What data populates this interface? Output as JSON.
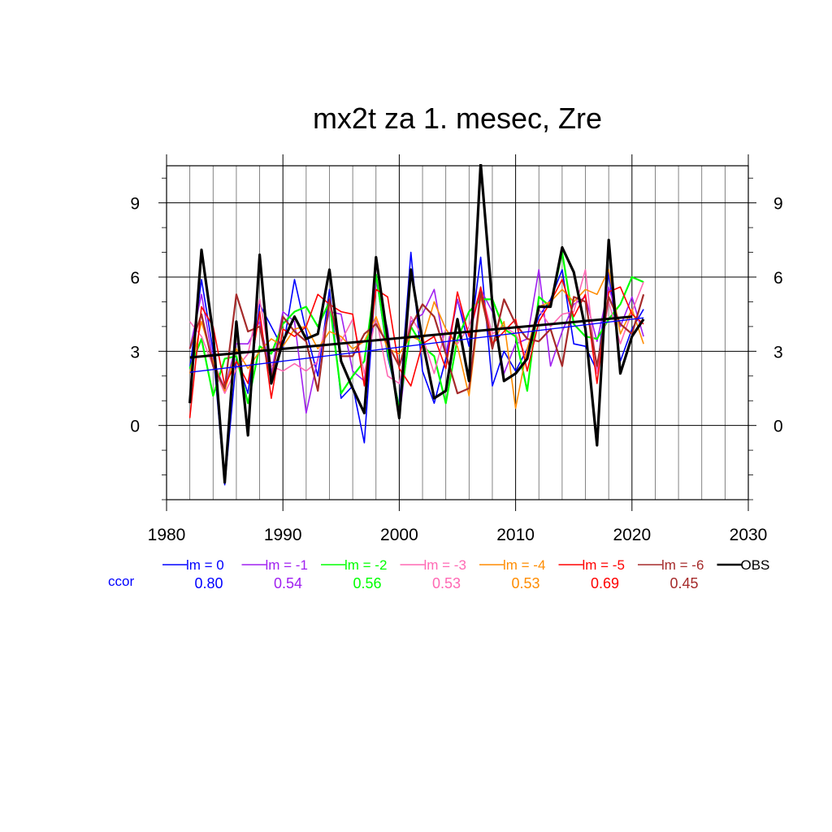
{
  "chart_data": {
    "type": "line",
    "title": "mx2t za 1. mesec, Zre",
    "xlabel": "",
    "ylabel": "",
    "xlim": [
      1980,
      2030
    ],
    "ylim": [
      -3,
      10.5
    ],
    "grid": true,
    "x_ticks": [
      1980,
      1990,
      2000,
      2010,
      2020,
      2030
    ],
    "y_ticks": [
      0,
      3,
      6,
      9
    ],
    "x": [
      1982,
      1983,
      1984,
      1985,
      1986,
      1987,
      1988,
      1989,
      1990,
      1991,
      1992,
      1993,
      1994,
      1995,
      1996,
      1997,
      1998,
      1999,
      2000,
      2001,
      2002,
      2003,
      2004,
      2005,
      2006,
      2007,
      2008,
      2009,
      2010,
      2011,
      2012,
      2013,
      2014,
      2015,
      2016,
      2017,
      2018,
      2019,
      2020,
      2021
    ],
    "series": [
      {
        "name": "lm = 0",
        "color": "#0000ff",
        "ccor": "0.80",
        "width": 1.6,
        "values": [
          2.3,
          5.9,
          3.0,
          -2.4,
          2.7,
          1.3,
          4.9,
          4.0,
          3.1,
          5.9,
          3.8,
          2.0,
          5.5,
          1.1,
          1.6,
          -0.7,
          6.1,
          2.8,
          0.8,
          7.0,
          2.2,
          0.9,
          2.7,
          5.1,
          3.2,
          6.8,
          1.6,
          3.0,
          2.2,
          3.1,
          4.4,
          5.1,
          6.3,
          3.3,
          3.2,
          2.2,
          6.2,
          2.6,
          3.9,
          4.7
        ],
        "trend": [
          2.15,
          4.35
        ]
      },
      {
        "name": "lm = -1",
        "color": "#a020f0",
        "ccor": "0.54",
        "width": 1.6,
        "values": [
          3.1,
          5.3,
          2.6,
          1.5,
          3.3,
          3.3,
          4.2,
          2.1,
          4.6,
          4.2,
          0.5,
          2.7,
          4.6,
          4.5,
          2.2,
          1.8,
          5.8,
          3.9,
          0.3,
          4.2,
          4.5,
          5.5,
          2.9,
          5.1,
          3.6,
          5.5,
          4.6,
          2.1,
          3.3,
          3.5,
          6.3,
          2.4,
          3.8,
          4.9,
          5.2,
          3.4,
          5.6,
          4.0,
          5.2,
          3.6
        ]
      },
      {
        "name": "lm = -2",
        "color": "#00ff00",
        "ccor": "0.56",
        "width": 2.2,
        "values": [
          2.3,
          3.5,
          1.2,
          2.7,
          2.8,
          0.9,
          3.2,
          2.9,
          4.1,
          4.6,
          4.8,
          4.0,
          5.0,
          1.3,
          2.0,
          2.6,
          6.1,
          3.0,
          0.7,
          4.0,
          3.2,
          2.8,
          0.9,
          3.5,
          4.6,
          5.1,
          5.1,
          3.9,
          3.6,
          1.4,
          5.2,
          4.8,
          7.0,
          4.1,
          3.6,
          3.5,
          4.3,
          4.9,
          6.0,
          5.8
        ]
      },
      {
        "name": "lm = -3",
        "color": "#ff69b4",
        "ccor": "0.53",
        "width": 1.6,
        "values": [
          4.2,
          3.6,
          2.4,
          1.3,
          2.3,
          2.9,
          5.1,
          2.4,
          2.2,
          2.5,
          2.2,
          2.6,
          4.8,
          3.4,
          4.3,
          2.1,
          4.4,
          2.0,
          1.7,
          4.4,
          3.6,
          2.1,
          3.9,
          3.3,
          4.0,
          5.5,
          3.7,
          4.0,
          3.7,
          2.7,
          4.7,
          4.0,
          4.5,
          4.6,
          6.3,
          2.1,
          5.0,
          3.3,
          4.6,
          5.8
        ]
      },
      {
        "name": "lm = -4",
        "color": "#ff8c00",
        "ccor": "0.53",
        "width": 1.6,
        "values": [
          2.1,
          4.2,
          2.6,
          1.4,
          3.1,
          2.3,
          3.0,
          3.5,
          3.2,
          3.9,
          4.0,
          3.1,
          3.8,
          3.6,
          3.1,
          3.4,
          4.4,
          3.1,
          2.9,
          3.6,
          3.4,
          5.0,
          3.9,
          3.2,
          1.2,
          5.2,
          3.3,
          4.2,
          0.7,
          3.1,
          4.8,
          5.0,
          5.5,
          5.0,
          5.5,
          5.3,
          6.3,
          3.7,
          4.7,
          3.3
        ]
      },
      {
        "name": "lm = -5",
        "color": "#ff0000",
        "ccor": "0.69",
        "width": 1.6,
        "values": [
          0.3,
          4.8,
          4.0,
          1.6,
          2.6,
          1.7,
          4.6,
          1.1,
          3.9,
          3.6,
          4.0,
          5.3,
          4.9,
          4.6,
          4.5,
          1.6,
          5.5,
          5.2,
          2.3,
          1.6,
          3.3,
          3.6,
          2.3,
          5.4,
          3.6,
          5.6,
          3.3,
          3.8,
          4.3,
          2.2,
          4.2,
          5.0,
          5.9,
          4.4,
          5.3,
          1.7,
          5.4,
          5.6,
          4.5,
          4.1
        ]
      },
      {
        "name": "lm = -6",
        "color": "#a52a2a",
        "ccor": "0.45",
        "width": 2.2,
        "values": [
          3.1,
          4.5,
          2.4,
          1.5,
          5.3,
          3.8,
          4.0,
          1.8,
          4.4,
          3.8,
          3.4,
          1.4,
          5.1,
          2.8,
          2.8,
          3.7,
          4.1,
          3.3,
          2.4,
          4.0,
          4.9,
          4.4,
          2.9,
          1.3,
          1.5,
          5.4,
          3.1,
          5.1,
          4.1,
          3.5,
          3.4,
          3.9,
          2.4,
          5.2,
          5.0,
          2.4,
          5.2,
          4.1,
          3.7,
          5.3
        ]
      },
      {
        "name": "OBS",
        "color": "#000000",
        "ccor": "",
        "width": 3.2,
        "values": [
          0.9,
          7.1,
          3.7,
          -2.3,
          4.2,
          -0.4,
          6.9,
          1.7,
          3.4,
          4.4,
          3.5,
          3.7,
          6.3,
          2.6,
          1.5,
          0.5,
          6.8,
          3.5,
          0.3,
          6.3,
          3.4,
          1.1,
          1.4,
          4.3,
          1.8,
          10.6,
          4.9,
          1.8,
          2.1,
          2.7,
          4.8,
          4.8,
          7.2,
          6.2,
          3.9,
          -0.8,
          7.5,
          2.1,
          3.6,
          4.3
        ],
        "trend": [
          2.75,
          4.4
        ]
      }
    ],
    "trend_range": [
      1982,
      2020
    ],
    "ccor_label": "ccor",
    "ccor_label_color": "#0000ff"
  }
}
